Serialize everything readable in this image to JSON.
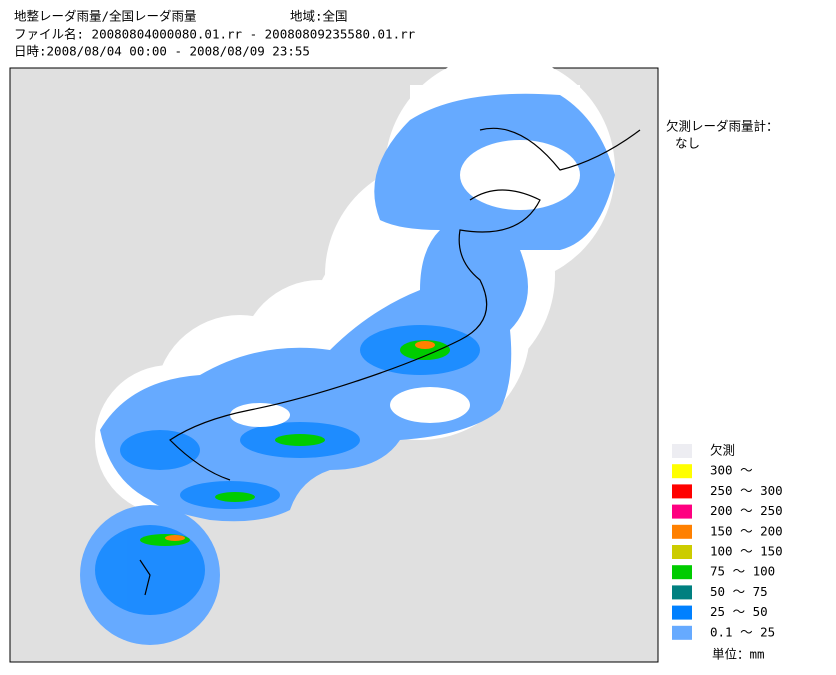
{
  "header": {
    "title": "地整レーダ雨量/全国レーダ雨量",
    "region": "地域:全国",
    "file": "ファイル名: 20080804000080.01.rr - 20080809235580.01.rr",
    "period": "日時:2008/08/04 00:00 - 2008/08/09 23:55"
  },
  "missing_radar": {
    "label": "欠測レーダ雨量計：",
    "value": "なし"
  },
  "legend": {
    "items": [
      {
        "label": "欠測",
        "color": "#ededf2"
      },
      {
        "label": "300 ～",
        "color": "#ffff00"
      },
      {
        "label": "250 ～ 300",
        "color": "#ff0000"
      },
      {
        "label": "200 ～ 250",
        "color": "#ff0080"
      },
      {
        "label": "150 ～ 200",
        "color": "#ff8000"
      },
      {
        "label": "100 ～ 150",
        "color": "#cccc00"
      },
      {
        "label": " 75 ～ 100",
        "color": "#00cc00"
      },
      {
        "label": " 50 ～  75",
        "color": "#008080"
      },
      {
        "label": " 25 ～  50",
        "color": "#0080ff"
      },
      {
        "label": "0.1 ～  25",
        "color": "#66aaff"
      }
    ],
    "unit": "単位：mm"
  }
}
